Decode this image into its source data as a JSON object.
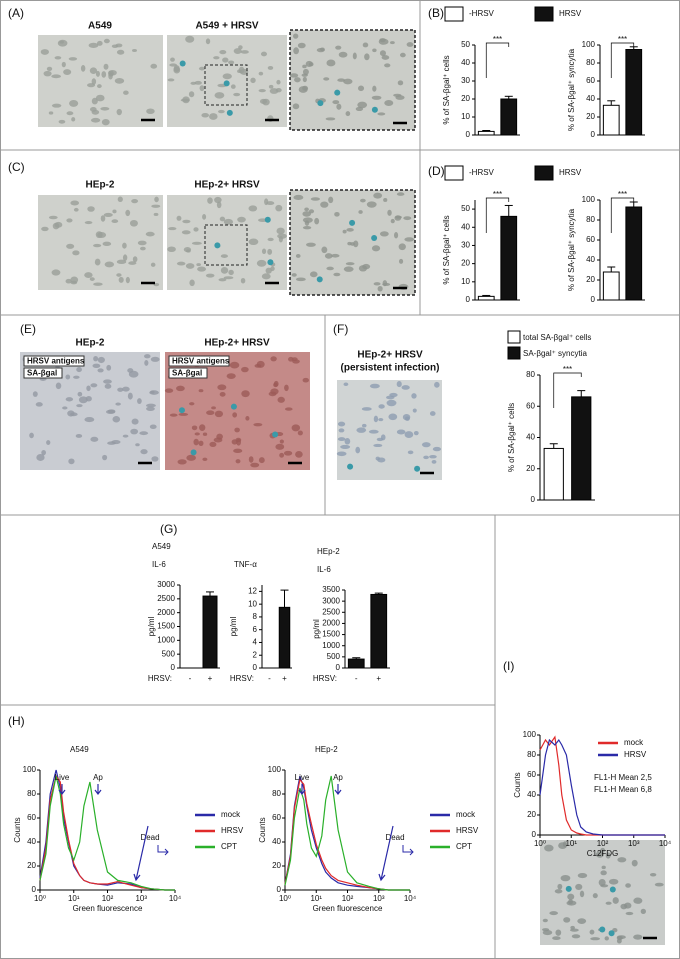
{
  "panel_labels": [
    "(A)",
    "(B)",
    "(C)",
    "(D)",
    "(E)",
    "(F)",
    "(G)",
    "(H)",
    "(I)"
  ],
  "images": {
    "A": [
      "A549",
      "A549 + HRSV"
    ],
    "C": [
      "HEp-2",
      "HEp-2+ HRSV"
    ],
    "E": [
      "HEp-2",
      "HEp-2+ HRSV"
    ],
    "E_labels": [
      "HRSV antigens",
      "SA-βgal"
    ],
    "F": [
      "HEp-2+ HRSV",
      "(persistent infection)"
    ]
  },
  "chart_data": [
    {
      "type": "bar",
      "ylabel": "% of SA-βgal⁺ cells",
      "ylim": [
        0,
        50
      ],
      "yticks": [
        0,
        10,
        20,
        30,
        40,
        50
      ],
      "values": [
        2,
        20
      ],
      "errors": [
        0.5,
        1.5
      ],
      "colors": [
        "#ffffff",
        "#111111"
      ],
      "significance": "***",
      "legend": [
        {
          "name": "-HRSV",
          "color": "#ffffff"
        },
        {
          "name": "HRSV",
          "color": "#111111"
        }
      ]
    },
    {
      "type": "bar",
      "ylabel": "% of SA-βgal⁺ syncytia",
      "ylim": [
        0,
        100
      ],
      "yticks": [
        0,
        20,
        40,
        60,
        80,
        100
      ],
      "values": [
        33,
        95
      ],
      "errors": [
        5,
        3
      ],
      "colors": [
        "#ffffff",
        "#111111"
      ],
      "significance": "***"
    },
    {
      "type": "bar",
      "ylabel": "% of SA-βgal⁺ cells",
      "ylim": [
        0,
        55
      ],
      "yticks": [
        0,
        10,
        20,
        30,
        40,
        50
      ],
      "values": [
        2,
        46
      ],
      "errors": [
        0.5,
        6
      ],
      "colors": [
        "#ffffff",
        "#111111"
      ],
      "significance": "***",
      "legend": [
        {
          "name": "-HRSV",
          "color": "#ffffff"
        },
        {
          "name": "HRSV",
          "color": "#111111"
        }
      ]
    },
    {
      "type": "bar",
      "ylabel": "% of SA-βgal⁺ syncytia",
      "ylim": [
        0,
        100
      ],
      "yticks": [
        0,
        20,
        40,
        60,
        80,
        100
      ],
      "values": [
        28,
        93
      ],
      "errors": [
        5,
        5
      ],
      "colors": [
        "#ffffff",
        "#111111"
      ],
      "significance": "***"
    },
    {
      "type": "bar",
      "ylabel": "% of SA-βgal⁺ cells",
      "ylim": [
        0,
        80
      ],
      "yticks": [
        0,
        20,
        40,
        60,
        80
      ],
      "values": [
        33,
        66
      ],
      "errors": [
        3,
        4
      ],
      "colors": [
        "#ffffff",
        "#111111"
      ],
      "significance": "***",
      "legend": [
        {
          "name": "total SA-βgal⁺ cells",
          "color": "#ffffff"
        },
        {
          "name": "SA-βgal⁺ syncytia",
          "color": "#111111"
        }
      ]
    },
    {
      "type": "bar",
      "cell_line": "A549",
      "title": "IL-6",
      "ylabel": "pg/ml",
      "ylim": [
        0,
        3000
      ],
      "yticks": [
        0,
        500,
        1000,
        1500,
        2000,
        2500,
        3000
      ],
      "categories": [
        "-",
        "+"
      ],
      "x_label": "HRSV:",
      "values": [
        0,
        2600
      ],
      "errors": [
        0,
        150
      ],
      "colors": [
        "#111111",
        "#111111"
      ]
    },
    {
      "type": "bar",
      "title": "TNF-α",
      "ylabel": "pg/ml",
      "ylim": [
        0,
        13
      ],
      "yticks": [
        0,
        2,
        4,
        6,
        8,
        10,
        12
      ],
      "categories": [
        "-",
        "+"
      ],
      "x_label": "HRSV:",
      "values": [
        0,
        9.5
      ],
      "errors": [
        0,
        2.7
      ],
      "colors": [
        "#111111",
        "#111111"
      ]
    },
    {
      "type": "bar",
      "cell_line": "HEp-2",
      "title": "IL-6",
      "ylabel": "pg/ml",
      "ylim": [
        0,
        3500
      ],
      "yticks": [
        0,
        500,
        1000,
        1500,
        2000,
        2500,
        3000,
        3500
      ],
      "categories": [
        "-",
        "+"
      ],
      "x_label": "HRSV:",
      "values": [
        400,
        3300
      ],
      "errors": [
        60,
        60
      ],
      "colors": [
        "#111111",
        "#111111"
      ]
    },
    {
      "type": "line",
      "title": "A549",
      "xlabel": "Green fluorescence",
      "ylabel": "Counts",
      "xscale": "log",
      "xlim": [
        1,
        10000
      ],
      "xticks": [
        {
          "value": 1,
          "label": "10⁰"
        },
        {
          "value": 10,
          "label": "10¹"
        },
        {
          "value": 100,
          "label": "10²"
        },
        {
          "value": 1000,
          "label": "10³"
        },
        {
          "value": 10000,
          "label": "10⁴"
        }
      ],
      "ylim": [
        0,
        100
      ],
      "yticks": [
        0,
        20,
        40,
        60,
        80,
        100
      ],
      "x": [
        1,
        1.5,
        2,
        3,
        4,
        5,
        7,
        10,
        15,
        20,
        30,
        50,
        100,
        200,
        500,
        1000,
        2000,
        5000,
        10000
      ],
      "series": [
        {
          "name": "mock",
          "color": "#2a2aa8",
          "values": [
            10,
            40,
            80,
            100,
            85,
            60,
            40,
            20,
            12,
            8,
            6,
            5,
            4,
            6,
            5,
            2,
            1,
            0,
            0
          ]
        },
        {
          "name": "HRSV",
          "color": "#e02a2a",
          "values": [
            8,
            35,
            75,
            95,
            90,
            65,
            42,
            22,
            12,
            8,
            6,
            5,
            5,
            7,
            4,
            2,
            1,
            0,
            0
          ]
        },
        {
          "name": "CPT",
          "color": "#2ab02a",
          "values": [
            8,
            30,
            70,
            95,
            80,
            55,
            35,
            25,
            40,
            70,
            90,
            50,
            15,
            8,
            6,
            3,
            1,
            0,
            0
          ]
        }
      ],
      "annotations": [
        {
          "text": "Live"
        },
        {
          "text": "Ap"
        },
        {
          "text": "Dead"
        }
      ]
    },
    {
      "type": "line",
      "title": "HEp-2",
      "xlabel": "Green fluorescence",
      "ylabel": "Counts",
      "xscale": "log",
      "xlim": [
        1,
        10000
      ],
      "xticks": [
        {
          "value": 1,
          "label": "10⁰"
        },
        {
          "value": 10,
          "label": "10¹"
        },
        {
          "value": 100,
          "label": "10²"
        },
        {
          "value": 1000,
          "label": "10³"
        },
        {
          "value": 10000,
          "label": "10⁴"
        }
      ],
      "ylim": [
        0,
        100
      ],
      "yticks": [
        0,
        20,
        40,
        60,
        80,
        100
      ],
      "x": [
        1,
        1.5,
        2,
        3,
        4,
        5,
        7,
        10,
        15,
        20,
        30,
        50,
        100,
        200,
        500,
        1000,
        2000,
        5000,
        10000
      ],
      "series": [
        {
          "name": "mock",
          "color": "#2a2aa8",
          "values": [
            5,
            30,
            70,
            95,
            85,
            70,
            50,
            35,
            22,
            15,
            10,
            6,
            4,
            3,
            2,
            1,
            0,
            0,
            0
          ]
        },
        {
          "name": "HRSV",
          "color": "#e02a2a",
          "values": [
            5,
            28,
            68,
            92,
            88,
            72,
            55,
            38,
            25,
            18,
            12,
            8,
            6,
            4,
            2,
            1,
            0,
            0,
            0
          ]
        },
        {
          "name": "CPT",
          "color": "#2ab02a",
          "values": [
            4,
            25,
            60,
            85,
            75,
            55,
            35,
            28,
            45,
            75,
            95,
            50,
            15,
            6,
            3,
            1,
            0,
            0,
            0
          ]
        }
      ],
      "annotations": [
        {
          "text": "Live"
        },
        {
          "text": "Ap"
        },
        {
          "text": "Dead"
        }
      ]
    },
    {
      "type": "line",
      "xlabel": "C12FDG",
      "ylabel": "Counts",
      "xscale": "log",
      "xlim": [
        1,
        10000
      ],
      "xticks": [
        {
          "value": 1,
          "label": "10⁰"
        },
        {
          "value": 10,
          "label": "10¹"
        },
        {
          "value": 100,
          "label": "10²"
        },
        {
          "value": 1000,
          "label": "10³"
        },
        {
          "value": 10000,
          "label": "10⁴"
        }
      ],
      "ylim": [
        0,
        100
      ],
      "yticks": [
        0,
        20,
        40,
        60,
        80,
        100
      ],
      "x": [
        1,
        1.5,
        2,
        3,
        4,
        5,
        7,
        10,
        15,
        20,
        30,
        50,
        100,
        1000,
        10000
      ],
      "series": [
        {
          "name": "mock",
          "color": "#e02a2a",
          "values": [
            85,
            95,
            90,
            98,
            70,
            40,
            15,
            5,
            2,
            1,
            0,
            0,
            0,
            0,
            0
          ]
        },
        {
          "name": "HRSV",
          "color": "#2a2aa8",
          "values": [
            40,
            80,
            95,
            90,
            95,
            90,
            80,
            50,
            20,
            8,
            3,
            1,
            0,
            0,
            0
          ]
        }
      ],
      "annotations": [
        {
          "text": "FL1-H  Mean 2,5",
          "color": "#e02a2a"
        },
        {
          "text": "FL1-H  Mean 6,8",
          "color": "#2a2aa8"
        }
      ]
    }
  ]
}
